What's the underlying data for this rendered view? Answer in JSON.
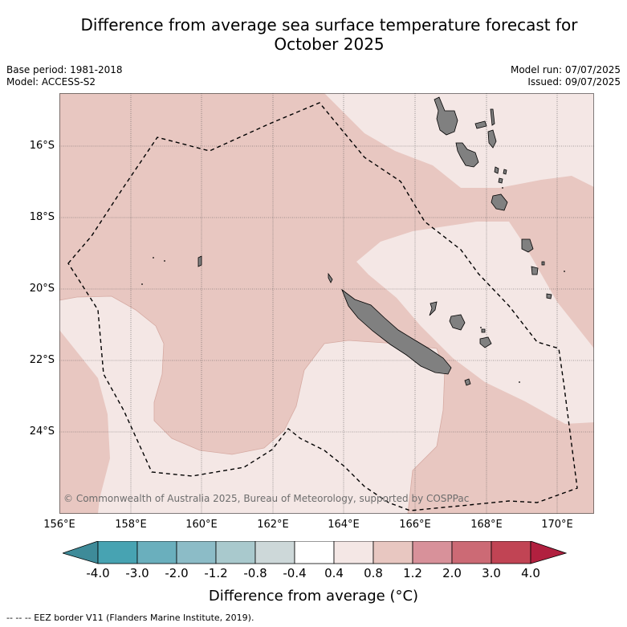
{
  "title": {
    "line1": "Difference from average sea surface temperature forecast for",
    "line2": "October 2025"
  },
  "meta": {
    "base_period": "Base period: 1981-2018",
    "model": "Model: ACCESS-S2",
    "model_run": "Model run: 07/07/2025",
    "issued": "Issued: 09/07/2025"
  },
  "map": {
    "lat_labels": [
      "16°S",
      "18°S",
      "20°S",
      "22°S",
      "24°S"
    ],
    "lon_labels": [
      "156°E",
      "158°E",
      "160°E",
      "162°E",
      "164°E",
      "166°E",
      "168°E",
      "170°E"
    ],
    "copyright": "© Commonwealth of Australia 2025, Bureau of Meteorology, supported by COSPPac",
    "colors": {
      "anomaly_0_4_to_0_8": "#f4e7e5",
      "anomaly_0_8_to_1_2": "#e8c7c1",
      "land": "#808080"
    }
  },
  "colorbar": {
    "ticks": [
      "-4.0",
      "-3.0",
      "-2.0",
      "-1.2",
      "-0.8",
      "-0.4",
      "0.4",
      "0.8",
      "1.2",
      "2.0",
      "3.0",
      "4.0"
    ],
    "colors": [
      "#3e8b99",
      "#47a3b2",
      "#6aafbd",
      "#8cbcc7",
      "#a9c9cd",
      "#cdd8d9",
      "#ffffff",
      "#f4e7e5",
      "#e8c7c1",
      "#d8919a",
      "#cc6a75",
      "#c14454",
      "#b1203f"
    ],
    "label": "Difference from average (°C)"
  },
  "footnote": "--  --  -- EEZ border V11 (Flanders Marine Institute, 2019)."
}
